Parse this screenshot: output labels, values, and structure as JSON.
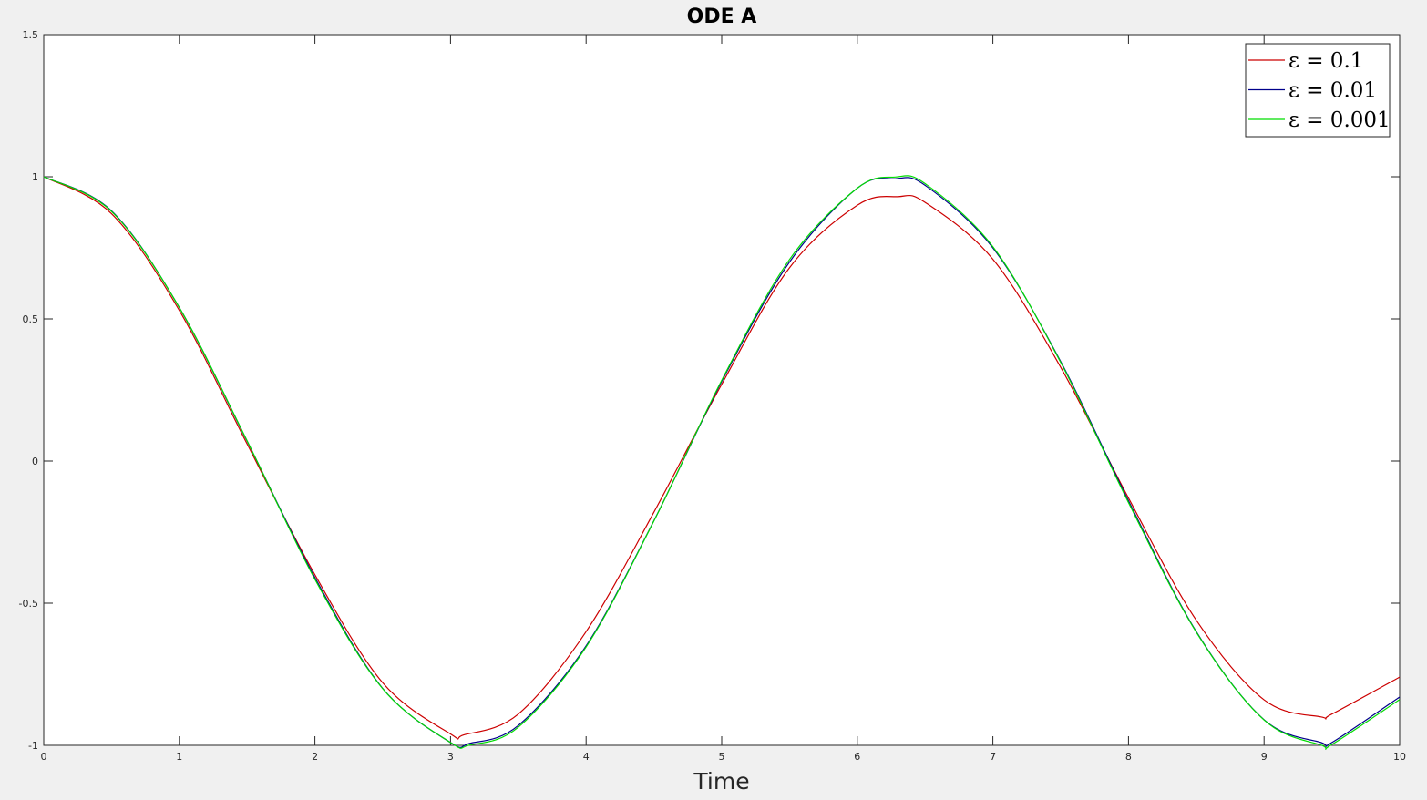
{
  "chart_data": {
    "type": "line",
    "title": "ODE A",
    "xlabel": "Time",
    "ylabel": "",
    "xlim": [
      0,
      10
    ],
    "ylim": [
      -1,
      1.5
    ],
    "xticks": [
      0,
      1,
      2,
      3,
      4,
      5,
      6,
      7,
      8,
      9,
      10
    ],
    "xtick_labels": [
      "0",
      "1",
      "2",
      "3",
      "4",
      "5",
      "6",
      "7",
      "8",
      "9",
      "10"
    ],
    "yticks": [
      -1,
      -0.5,
      0,
      0.5,
      1,
      1.5
    ],
    "ytick_labels": [
      "-1",
      "-0.5",
      "0",
      "0.5",
      "1",
      "1.5"
    ],
    "grid": false,
    "legend_position": "top-right",
    "series": [
      {
        "name": "ε = 0.1",
        "color": "#cc0000",
        "x": [
          0,
          0.5,
          1,
          1.5,
          2,
          2.5,
          3,
          3.1,
          3.5,
          4,
          4.5,
          5,
          5.5,
          6,
          6.3,
          6.5,
          7,
          7.5,
          8,
          8.5,
          9,
          9.42,
          9.5,
          10
        ],
        "y": [
          1,
          0.87,
          0.53,
          0.06,
          -0.4,
          -0.78,
          -0.96,
          -0.963,
          -0.89,
          -0.6,
          -0.18,
          0.27,
          0.68,
          0.9,
          0.93,
          0.91,
          0.71,
          0.33,
          -0.13,
          -0.56,
          -0.84,
          -0.9,
          -0.89,
          -0.76
        ]
      },
      {
        "name": "ε = 0.01",
        "color": "#00008b",
        "x": [
          0,
          0.5,
          1,
          1.5,
          2,
          2.5,
          3,
          3.14,
          3.5,
          4,
          4.5,
          5,
          5.5,
          6,
          6.28,
          6.5,
          7,
          7.5,
          8,
          8.5,
          9,
          9.42,
          9.5,
          10
        ],
        "y": [
          1,
          0.88,
          0.54,
          0.07,
          -0.41,
          -0.8,
          -0.99,
          -0.993,
          -0.93,
          -0.65,
          -0.21,
          0.28,
          0.7,
          0.96,
          0.993,
          0.97,
          0.75,
          0.35,
          -0.14,
          -0.6,
          -0.91,
          -0.99,
          -0.99,
          -0.83
        ]
      },
      {
        "name": "ε = 0.001",
        "color": "#00dd00",
        "x": [
          0,
          0.5,
          1,
          1.5,
          2,
          2.5,
          3,
          3.14,
          3.5,
          4,
          4.5,
          5,
          5.5,
          6,
          6.28,
          6.5,
          7,
          7.5,
          8,
          8.5,
          9,
          9.42,
          9.5,
          10
        ],
        "y": [
          1,
          0.878,
          0.54,
          0.071,
          -0.416,
          -0.801,
          -0.99,
          -0.999,
          -0.936,
          -0.654,
          -0.211,
          0.284,
          0.709,
          0.96,
          0.999,
          0.976,
          0.754,
          0.347,
          -0.146,
          -0.602,
          -0.911,
          -0.999,
          -0.997,
          -0.839
        ]
      }
    ]
  }
}
